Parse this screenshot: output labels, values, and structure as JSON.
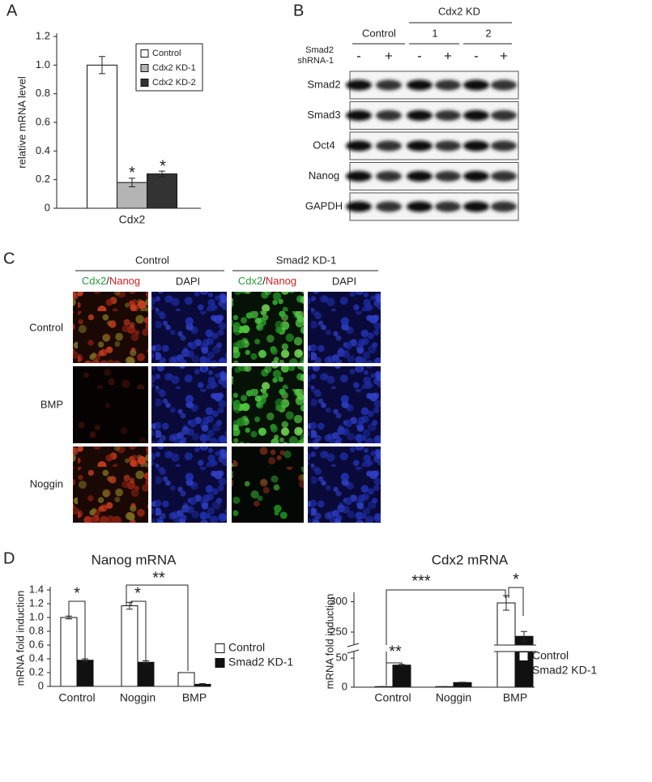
{
  "panel_labels": [
    "A",
    "B",
    "C",
    "D"
  ],
  "chart_data": [
    {
      "type": "bar",
      "ylabel": "relative mRNA level",
      "categories": [
        "Cdx2"
      ],
      "series": [
        {
          "name": "Control",
          "color": "#ffffff",
          "values": [
            1.0
          ],
          "errors": [
            0.06
          ]
        },
        {
          "name": "Cdx2 KD-1",
          "color": "#b4b4b4",
          "values": [
            0.18
          ],
          "errors": [
            0.03
          ]
        },
        {
          "name": "Cdx2 KD-2",
          "color": "#333333",
          "values": [
            0.24
          ],
          "errors": [
            0.02
          ]
        }
      ],
      "ylim": [
        0,
        1.2
      ],
      "yticks": [
        0,
        0.2,
        0.4,
        0.6,
        0.8,
        {
          "value": 1,
          "label": "1.0"
        },
        1.2
      ],
      "annotations": [
        "*",
        "*"
      ],
      "legend": "upper right",
      "grid": false
    },
    {
      "type": "bar",
      "title": "Nanog mRNA",
      "ylabel": "mRNA fold induction",
      "categories": [
        "Control",
        "Noggin",
        "BMP"
      ],
      "series": [
        {
          "name": "Control",
          "color": "#ffffff",
          "values": [
            1.0,
            1.17,
            0.2
          ],
          "errors": [
            0.02,
            0.05,
            0
          ]
        },
        {
          "name": "Smad2 KD-1",
          "color": "#111111",
          "values": [
            0.38,
            0.35,
            0.03
          ],
          "errors": [
            0.02,
            0.02,
            0.01
          ]
        }
      ],
      "ylim": [
        0,
        1.4
      ],
      "yticks": [
        0,
        0.2,
        0.4,
        0.6,
        0.8,
        {
          "value": 1,
          "label": "1.0"
        },
        1.2,
        1.4
      ],
      "annotations": [
        "*",
        "*",
        "**"
      ],
      "legend": "right",
      "grid": false
    },
    {
      "type": "bar",
      "title": "Cdx2 mRNA",
      "ylabel": "mRNA fold induction",
      "categories": [
        "Control",
        "Noggin",
        "BMP"
      ],
      "series": [
        {
          "name": "Control",
          "color": "#ffffff",
          "values": [
            1,
            1,
            298
          ],
          "errors": [
            0,
            0,
            12
          ]
        },
        {
          "name": "Smad2 KD-1",
          "color": "#111111",
          "values": [
            38,
            8,
            243
          ],
          "errors": [
            1,
            0.5,
            8
          ]
        }
      ],
      "ylim": [
        0,
        310
      ],
      "ybreak": [
        60,
        230
      ],
      "yticks": [
        0,
        50,
        250,
        300
      ],
      "annotations": [
        "**",
        "***",
        "*"
      ],
      "legend": "right",
      "grid": false
    }
  ],
  "panel_b": {
    "group_control": "Control",
    "group_kd": "Cdx2 KD",
    "kd_numbers": [
      "1",
      "2"
    ],
    "treatment": [
      "Smad2",
      "shRNA-1"
    ],
    "signs": [
      "-",
      "+",
      "-",
      "+",
      "-",
      "+"
    ],
    "rows": [
      "Smad2",
      "Smad3",
      "Oct4",
      "Nanog",
      "GAPDH"
    ]
  },
  "panel_c": {
    "columns": [
      "Control",
      "Smad2 KD-1"
    ],
    "stain_green": "Cdx2",
    "stain_sep": "/",
    "stain_red": "Nanog",
    "stain_dapi": "DAPI",
    "rows": [
      "Control",
      "BMP",
      "Noggin"
    ]
  }
}
